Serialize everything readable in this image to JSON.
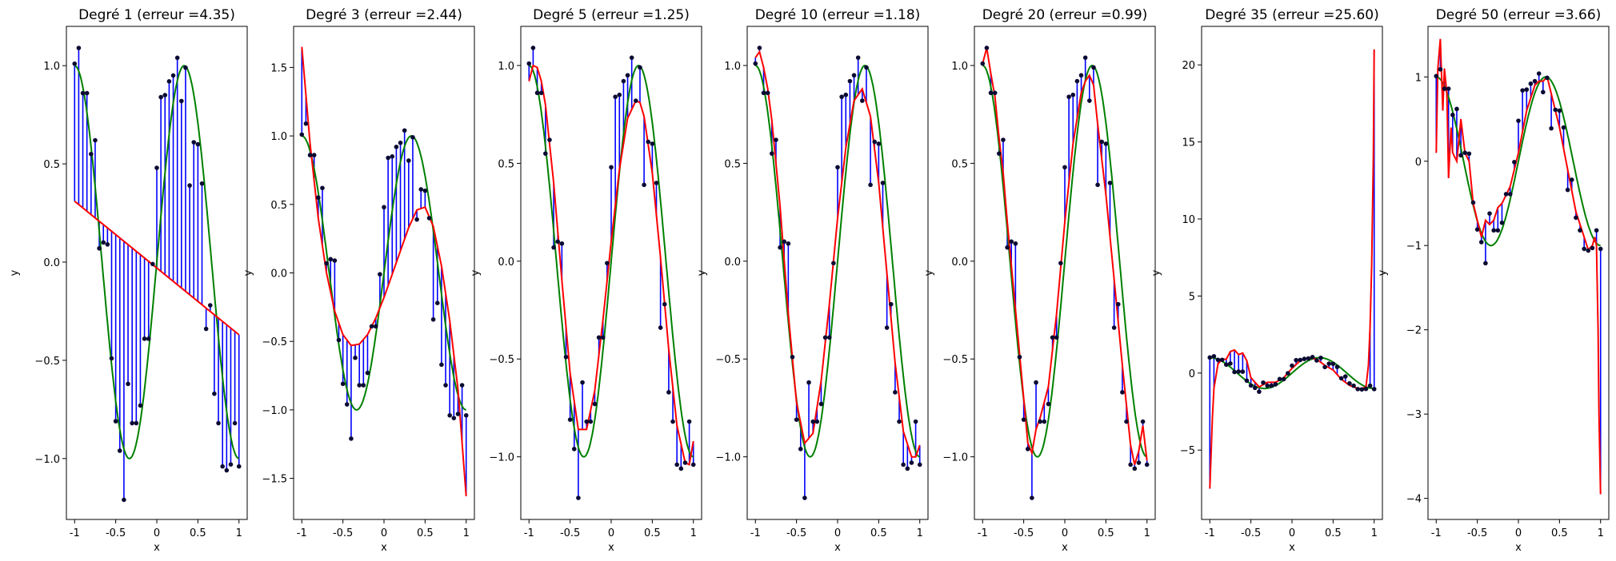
{
  "colors": {
    "true_curve": "#008000",
    "fit_curve": "#ff0000",
    "residual": "#0000ff",
    "sample": "#0a0a33"
  },
  "samples": {
    "x": [
      -1.0,
      -0.95,
      -0.9,
      -0.85,
      -0.8,
      -0.75,
      -0.7,
      -0.65,
      -0.6,
      -0.55,
      -0.5,
      -0.45,
      -0.4,
      -0.35,
      -0.3,
      -0.25,
      -0.2,
      -0.15,
      -0.1,
      -0.05,
      0.0,
      0.05,
      0.1,
      0.15,
      0.2,
      0.25,
      0.3,
      0.35,
      0.4,
      0.45,
      0.5,
      0.55,
      0.6,
      0.65,
      0.7,
      0.75,
      0.8,
      0.85,
      0.9,
      0.95,
      1.0
    ],
    "y": [
      1.01,
      1.09,
      0.86,
      0.86,
      0.55,
      0.62,
      0.07,
      0.1,
      0.09,
      -0.49,
      -0.81,
      -0.96,
      -1.21,
      -0.62,
      -0.82,
      -0.82,
      -0.73,
      -0.39,
      -0.39,
      -0.01,
      0.48,
      0.84,
      0.85,
      0.92,
      0.95,
      1.04,
      0.82,
      0.99,
      0.39,
      0.61,
      0.6,
      0.4,
      -0.34,
      -0.22,
      -0.67,
      -0.82,
      -1.04,
      -1.06,
      -1.03,
      -0.82,
      -1.04
    ]
  },
  "chart_data": [
    {
      "type": "line",
      "title": "Degré 1 (erreur =4.35)",
      "xlabel": "x",
      "ylabel": "y",
      "xlim": [
        -1.1,
        1.1
      ],
      "ylim": [
        -1.31,
        1.2
      ],
      "xticks": [
        -1.0,
        -0.5,
        0.0,
        0.5,
        1.0
      ],
      "yticks": [
        -1.0,
        -0.5,
        0.0,
        0.5,
        1.0
      ],
      "ytick_labels": [
        "−1.0",
        "−0.5",
        "0.0",
        "0.5",
        "1.0"
      ],
      "fit": {
        "x": [
          -1.0,
          1.0
        ],
        "y": [
          0.31,
          -0.37
        ]
      }
    },
    {
      "type": "line",
      "title": "Degré 3 (erreur =2.44)",
      "xlabel": "x",
      "ylabel": "y",
      "xlim": [
        -1.1,
        1.1
      ],
      "ylim": [
        -1.8,
        1.8
      ],
      "xticks": [
        -1.0,
        -0.5,
        0.0,
        0.5,
        1.0
      ],
      "yticks": [
        -1.5,
        -1.0,
        -0.5,
        0.0,
        0.5,
        1.0,
        1.5
      ],
      "ytick_labels": [
        "−1.5",
        "−1.0",
        "−0.5",
        "0.0",
        "0.5",
        "1.0",
        "1.5"
      ],
      "fit": {
        "x": [
          -1.0,
          -0.9,
          -0.8,
          -0.7,
          -0.6,
          -0.5,
          -0.4,
          -0.3,
          -0.2,
          -0.1,
          0.0,
          0.1,
          0.2,
          0.3,
          0.4,
          0.5,
          0.6,
          0.7,
          0.8,
          0.9,
          1.0
        ],
        "y": [
          1.65,
          0.95,
          0.4,
          0.0,
          -0.28,
          -0.45,
          -0.53,
          -0.52,
          -0.45,
          -0.33,
          -0.18,
          -0.01,
          0.16,
          0.33,
          0.46,
          0.48,
          0.34,
          0.05,
          -0.35,
          -0.85,
          -1.63
        ]
      }
    },
    {
      "type": "line",
      "title": "Degré 5 (erreur =1.25)",
      "xlabel": "x",
      "ylabel": "y",
      "xlim": [
        -1.1,
        1.1
      ],
      "ylim": [
        -1.32,
        1.2
      ],
      "xticks": [
        -1.0,
        -0.5,
        0.0,
        0.5,
        1.0
      ],
      "yticks": [
        -1.0,
        -0.5,
        0.0,
        0.5,
        1.0
      ],
      "ytick_labels": [
        "−1.0",
        "−0.5",
        "0.0",
        "0.5",
        "1.0"
      ],
      "fit": {
        "x": [
          -1.0,
          -0.95,
          -0.9,
          -0.85,
          -0.8,
          -0.7,
          -0.6,
          -0.5,
          -0.4,
          -0.3,
          -0.2,
          -0.1,
          0.0,
          0.1,
          0.2,
          0.3,
          0.35,
          0.4,
          0.5,
          0.6,
          0.7,
          0.8,
          0.9,
          0.95,
          1.0
        ],
        "y": [
          0.92,
          1.0,
          0.99,
          0.92,
          0.8,
          0.4,
          -0.1,
          -0.57,
          -0.86,
          -0.86,
          -0.66,
          -0.3,
          0.1,
          0.47,
          0.73,
          0.82,
          0.81,
          0.74,
          0.45,
          0.02,
          -0.45,
          -0.84,
          -1.03,
          -1.04,
          -0.92
        ]
      }
    },
    {
      "type": "line",
      "title": "Degré 10 (erreur =1.18)",
      "xlabel": "x",
      "ylabel": "y",
      "xlim": [
        -1.1,
        1.1
      ],
      "ylim": [
        -1.32,
        1.2
      ],
      "xticks": [
        -1.0,
        -0.5,
        0.0,
        0.5,
        1.0
      ],
      "yticks": [
        -1.0,
        -0.5,
        0.0,
        0.5,
        1.0
      ],
      "ytick_labels": [
        "−1.0",
        "−0.5",
        "0.0",
        "0.5",
        "1.0"
      ],
      "fit": {
        "x": [
          -1.0,
          -0.95,
          -0.9,
          -0.85,
          -0.8,
          -0.7,
          -0.6,
          -0.5,
          -0.4,
          -0.3,
          -0.2,
          -0.1,
          0.0,
          0.1,
          0.2,
          0.3,
          0.4,
          0.5,
          0.6,
          0.7,
          0.8,
          0.9,
          0.95,
          1.0
        ],
        "y": [
          1.04,
          1.07,
          0.99,
          0.88,
          0.72,
          0.28,
          -0.27,
          -0.72,
          -0.93,
          -0.88,
          -0.61,
          -0.22,
          0.22,
          0.58,
          0.82,
          0.88,
          0.74,
          0.4,
          -0.06,
          -0.52,
          -0.87,
          -1.0,
          -1.0,
          -0.94
        ]
      }
    },
    {
      "type": "line",
      "title": "Degré 20 (erreur =0.99)",
      "xlabel": "x",
      "ylabel": "y",
      "xlim": [
        -1.1,
        1.1
      ],
      "ylim": [
        -1.32,
        1.2
      ],
      "xticks": [
        -1.0,
        -0.5,
        0.0,
        0.5,
        1.0
      ],
      "yticks": [
        -1.0,
        -0.5,
        0.0,
        0.5,
        1.0
      ],
      "ytick_labels": [
        "−1.0",
        "−0.5",
        "0.0",
        "0.5",
        "1.0"
      ],
      "fit": {
        "x": [
          -1.0,
          -0.95,
          -0.9,
          -0.85,
          -0.8,
          -0.75,
          -0.7,
          -0.6,
          -0.5,
          -0.45,
          -0.4,
          -0.35,
          -0.3,
          -0.2,
          -0.1,
          0.0,
          0.1,
          0.2,
          0.25,
          0.3,
          0.35,
          0.4,
          0.5,
          0.6,
          0.7,
          0.8,
          0.85,
          0.9,
          0.95,
          1.0
        ],
        "y": [
          1.01,
          1.09,
          0.96,
          0.84,
          0.63,
          0.45,
          0.2,
          -0.25,
          -0.7,
          -0.93,
          -0.98,
          -0.86,
          -0.8,
          -0.64,
          -0.27,
          0.2,
          0.6,
          0.86,
          0.92,
          0.95,
          0.9,
          0.7,
          0.34,
          -0.09,
          -0.53,
          -0.94,
          -1.04,
          -0.97,
          -0.84,
          -1.02
        ]
      }
    },
    {
      "type": "line",
      "title": "Degré 35 (erreur =25.60)",
      "xlabel": "x",
      "ylabel": "y",
      "xlim": [
        -1.1,
        1.1
      ],
      "ylim": [
        -9.5,
        22.5
      ],
      "xticks": [
        -1.0,
        -0.5,
        0.0,
        0.5,
        1.0
      ],
      "yticks": [
        -5,
        0,
        5,
        10,
        15,
        20
      ],
      "ytick_labels": [
        "−5",
        "0",
        "5",
        "10",
        "15",
        "20"
      ],
      "fit": {
        "x": [
          -1.0,
          -0.97,
          -0.95,
          -0.9,
          -0.85,
          -0.8,
          -0.75,
          -0.7,
          -0.65,
          -0.6,
          -0.55,
          -0.5,
          -0.4,
          -0.3,
          -0.2,
          -0.1,
          0.0,
          0.1,
          0.2,
          0.3,
          0.4,
          0.5,
          0.6,
          0.7,
          0.8,
          0.85,
          0.9,
          0.93,
          0.95,
          0.97,
          0.99,
          1.0
        ],
        "y": [
          -7.5,
          -3.0,
          -1.0,
          0.6,
          0.9,
          0.9,
          1.4,
          1.5,
          1.2,
          1.3,
          0.8,
          -0.3,
          -0.9,
          -0.6,
          -0.6,
          -0.3,
          0.3,
          0.8,
          1.0,
          0.9,
          0.5,
          0.2,
          -0.4,
          -0.8,
          -1.0,
          -1.0,
          -0.9,
          0.5,
          3.0,
          7.0,
          14.0,
          21.0
        ]
      }
    },
    {
      "type": "line",
      "title": "Degré 50 (erreur =3.66)",
      "xlabel": "x",
      "ylabel": "y",
      "xlim": [
        -1.1,
        1.1
      ],
      "ylim": [
        -4.25,
        1.6
      ],
      "xticks": [
        -1.0,
        -0.5,
        0.0,
        0.5,
        1.0
      ],
      "yticks": [
        -4,
        -3,
        -2,
        -1,
        0,
        1
      ],
      "ytick_labels": [
        "−4",
        "−3",
        "−2",
        "−1",
        "0",
        "1"
      ],
      "fit": {
        "x": [
          -1.0,
          -0.98,
          -0.95,
          -0.92,
          -0.9,
          -0.87,
          -0.85,
          -0.82,
          -0.8,
          -0.75,
          -0.7,
          -0.65,
          -0.6,
          -0.55,
          -0.5,
          -0.45,
          -0.4,
          -0.35,
          -0.3,
          -0.25,
          -0.2,
          -0.1,
          0.0,
          0.1,
          0.2,
          0.25,
          0.3,
          0.35,
          0.4,
          0.5,
          0.6,
          0.7,
          0.8,
          0.85,
          0.9,
          0.93,
          0.95,
          0.97,
          0.98,
          1.0
        ],
        "y": [
          0.1,
          1.1,
          1.45,
          0.6,
          1.1,
          0.8,
          -0.2,
          0.4,
          0.1,
          0.0,
          0.5,
          0.1,
          0.0,
          -0.5,
          -0.7,
          -0.9,
          -0.7,
          -0.75,
          -0.7,
          -0.55,
          -0.5,
          -0.3,
          0.1,
          0.6,
          0.9,
          0.95,
          0.95,
          1.0,
          0.8,
          0.4,
          -0.1,
          -0.6,
          -0.9,
          -1.05,
          -1.0,
          -0.9,
          -1.0,
          -2.0,
          -3.0,
          -3.95
        ]
      }
    }
  ]
}
